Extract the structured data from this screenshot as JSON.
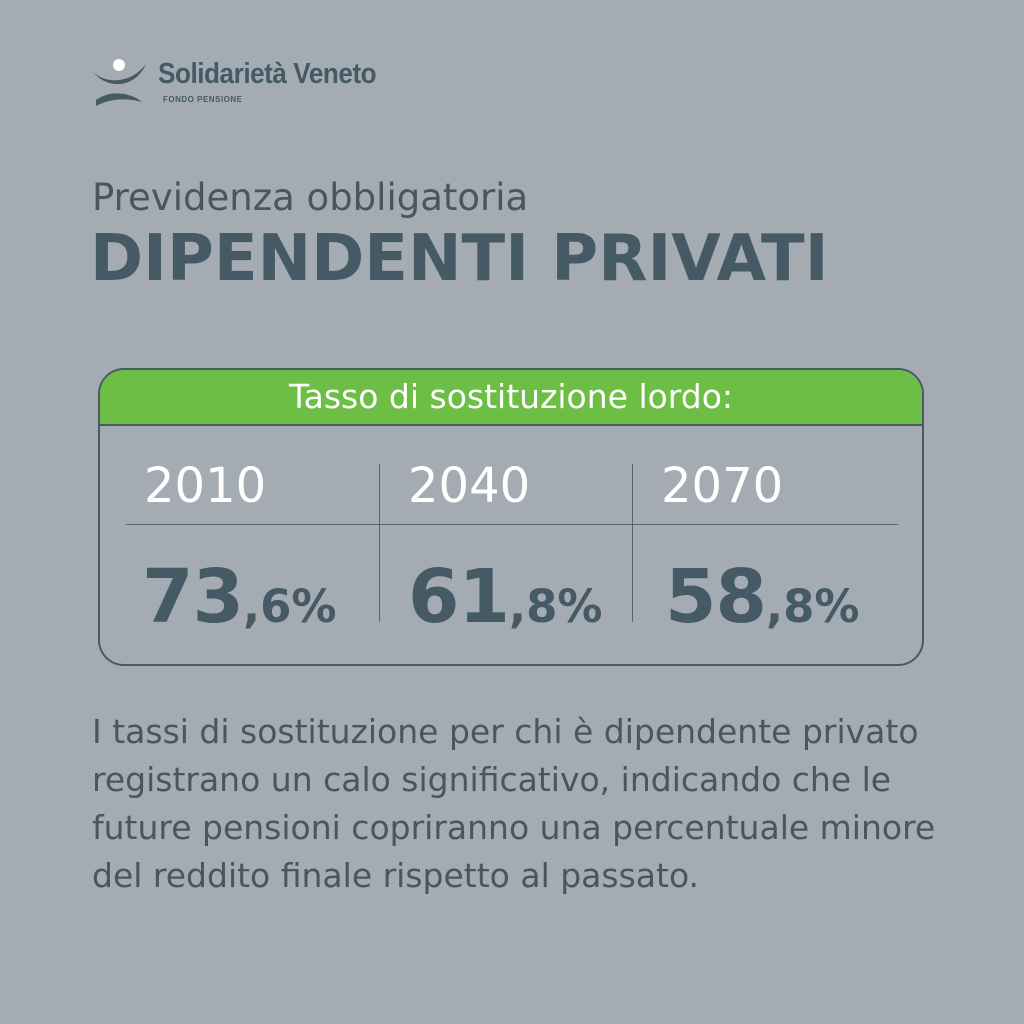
{
  "brand": {
    "name": "Solidarietà Veneto",
    "tagline": "FONDO PENSIONE",
    "logo_icon": "stylized-person-icon"
  },
  "subtitle": "Previdenza obbligatoria",
  "title": "DIPENDENTI PRIVATI",
  "card": {
    "header": "Tasso di sostituzione lordo:",
    "columns": [
      {
        "year": "2010",
        "rate_int": "73",
        "rate_dec": ",6%"
      },
      {
        "year": "2040",
        "rate_int": "61",
        "rate_dec": ",8%"
      },
      {
        "year": "2070",
        "rate_int": "58",
        "rate_dec": ",8%"
      }
    ]
  },
  "description": "I tassi di sostituzione per chi è dipendente privato registrano un calo significativo, indicando che le future pensioni copriranno una percentuale minore del reddito finale rispetto al passato.",
  "colors": {
    "background": "#a4abb2",
    "text_dark": "#455a64",
    "header_green": "#6cbe45",
    "white": "#ffffff"
  }
}
